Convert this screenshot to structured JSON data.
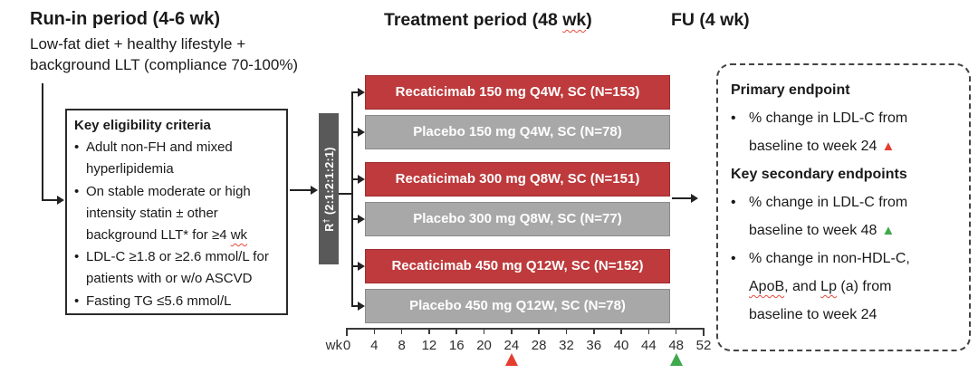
{
  "run_in": {
    "title": "Run-in period (4-6 wk)",
    "sub1": "Low-fat diet + healthy lifestyle +",
    "sub2": "background LLT (compliance 70-100%)"
  },
  "treatment": {
    "prefix": "Treatment period (48 ",
    "wk": "wk",
    "suffix": ")"
  },
  "fu": {
    "title": "FU (4 wk)"
  },
  "eligibility": {
    "title": "Key eligibility criteria",
    "bullet": "•",
    "b0_l1": "Adult non-FH and mixed",
    "b0_l2": "hyperlipidemia",
    "b1_l1": "On stable moderate or high",
    "b1_l2": "intensity statin ± other",
    "b1_l3a": "background LLT* for ≥4 ",
    "b1_l3b": "wk",
    "b2_l1": "LDL-C ≥1.8 or ≥2.6 mmol/L for",
    "b2_l2": "patients with or w/o ASCVD",
    "b3_l1": "Fasting TG ≤5.6 mmol/L"
  },
  "randomization": {
    "r": "R",
    "sup": "†",
    "ratio": "(2:1:2:1:2:1)"
  },
  "arms": [
    {
      "label": "Recaticimab 150 mg Q4W, SC (N=153)",
      "type": "recaticimab"
    },
    {
      "label": "Placebo 150 mg Q4W, SC (N=78)",
      "type": "placebo"
    },
    {
      "label": "Recaticimab 300 mg Q8W, SC (N=151)",
      "type": "recaticimab"
    },
    {
      "label": "Placebo 300 mg Q8W, SC (N=77)",
      "type": "placebo"
    },
    {
      "label": "Recaticimab 450 mg Q12W, SC (N=152)",
      "type": "recaticimab"
    },
    {
      "label": "Placebo 450 mg Q12W, SC (N=78)",
      "type": "placebo"
    }
  ],
  "axis": {
    "unit": "wk",
    "ticks": [
      "0",
      "4",
      "8",
      "12",
      "16",
      "20",
      "24",
      "28",
      "32",
      "36",
      "40",
      "44",
      "48",
      "52"
    ],
    "red_marker_at": "24",
    "green_marker_at": "48",
    "marker_red_color": "#E53E30",
    "marker_green_color": "#3FA94C"
  },
  "endpoints": {
    "primary_title": "Primary endpoint",
    "p1_l1": "% change in LDL-C from",
    "p1_l2": "baseline to week 24",
    "marker_up": "▲",
    "secondary_title": "Key secondary endpoints",
    "s1_l1": "% change in LDL-C from",
    "s1_l2": "baseline to week 48",
    "s2_l1": "% change in non-HDL-C,",
    "s2_l2a": "ApoB",
    "s2_l2b": ", and ",
    "s2_l2c": "Lp",
    "s2_l2d": " (a) from",
    "s2_l3": "baseline to week 24"
  },
  "colors": {
    "recaticimab_bar": "#BE3A3C",
    "placebo_bar": "#A8A8A8",
    "randomization_box": "#595959"
  }
}
